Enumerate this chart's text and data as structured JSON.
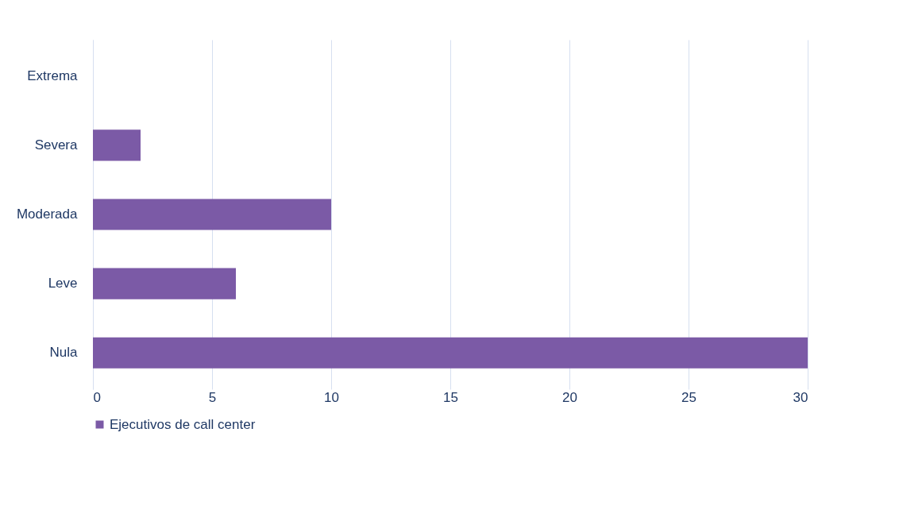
{
  "chart_data": {
    "type": "bar",
    "orientation": "horizontal",
    "categories": [
      "Extrema",
      "Severa",
      "Moderada",
      "Leve",
      "Nula"
    ],
    "series": [
      {
        "name": "Ejecutivos de call center",
        "color": "#7b5aa6",
        "values": [
          0,
          2,
          10,
          6,
          30
        ]
      }
    ],
    "xlim": [
      0,
      30
    ],
    "xticks": [
      0,
      5,
      10,
      15,
      20,
      25,
      30
    ],
    "grid": "x",
    "legend": "bottom"
  }
}
